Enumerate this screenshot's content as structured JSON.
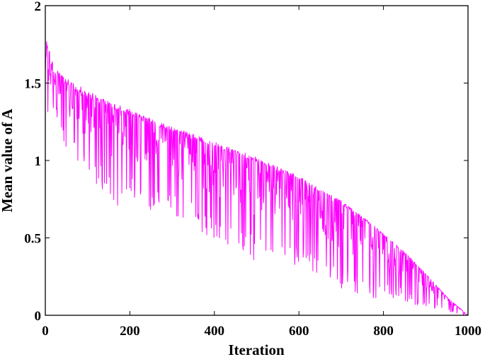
{
  "chart_data": {
    "type": "line",
    "title": "",
    "xlabel": "Iteration",
    "ylabel": "Mean value of A",
    "xlim": [
      0,
      1000
    ],
    "ylim": [
      0,
      2
    ],
    "xticks": [
      0,
      200,
      400,
      600,
      800,
      1000
    ],
    "yticks": [
      0,
      0.5,
      1,
      1.5,
      2
    ],
    "xtick_labels": [
      "0",
      "200",
      "400",
      "600",
      "800",
      "1000"
    ],
    "ytick_labels": [
      "0",
      "0.5",
      "1",
      "1.5",
      "2"
    ],
    "grid": false,
    "legend": "none",
    "series": [
      {
        "color": "#ff00ff",
        "envelope": {
          "x": [
            0,
            20,
            50,
            100,
            150,
            200,
            250,
            300,
            350,
            400,
            450,
            500,
            550,
            600,
            650,
            700,
            750,
            800,
            850,
            900,
            950,
            1000
          ],
          "y": [
            1.82,
            1.6,
            1.53,
            1.45,
            1.38,
            1.33,
            1.27,
            1.22,
            1.17,
            1.12,
            1.07,
            1.02,
            0.96,
            0.9,
            0.82,
            0.74,
            0.64,
            0.53,
            0.41,
            0.27,
            0.12,
            0.0
          ]
        },
        "drops_below_envelope": {
          "x": [
            25,
            45,
            70,
            95,
            130,
            170,
            200,
            235,
            275,
            310,
            350,
            380,
            420,
            460,
            500,
            510,
            540,
            575,
            600,
            640,
            680,
            720,
            760,
            800,
            840,
            880,
            920,
            960,
            990
          ],
          "y": [
            1.3,
            1.1,
            1.0,
            0.9,
            0.83,
            0.7,
            0.78,
            0.6,
            0.73,
            0.62,
            0.58,
            0.52,
            0.42,
            0.45,
            0.31,
            0.33,
            0.39,
            0.3,
            0.3,
            0.25,
            0.2,
            0.15,
            0.12,
            0.1,
            0.1,
            0.06,
            0.03,
            0.02,
            0.0
          ]
        }
      }
    ]
  }
}
